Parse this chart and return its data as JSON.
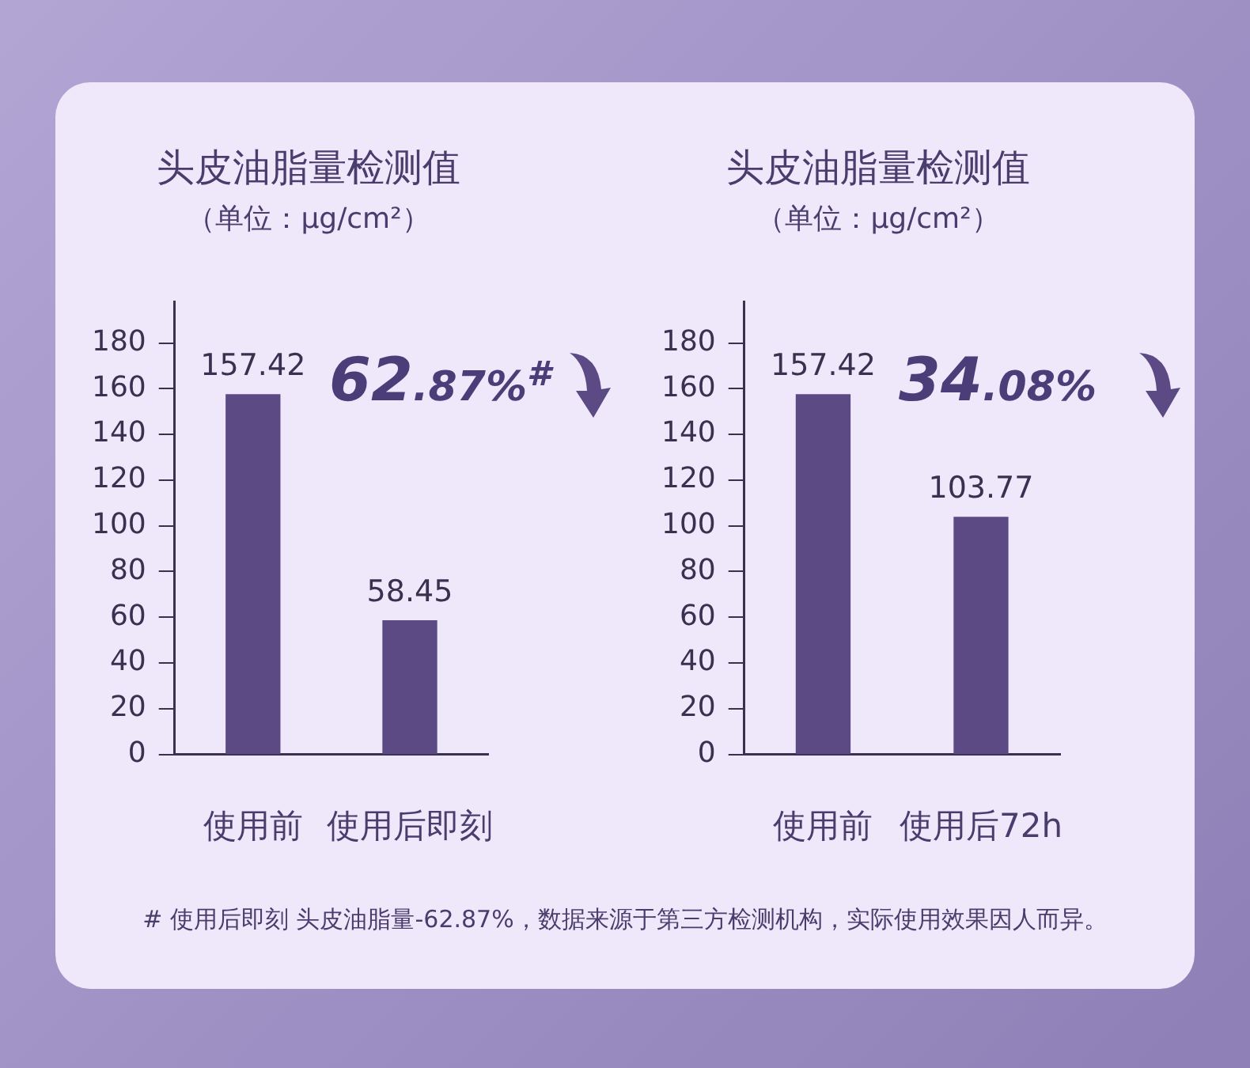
{
  "chart_data": [
    {
      "type": "bar",
      "title": "头皮油脂量检测值",
      "subtitle": "（单位：μg/cm²）",
      "categories": [
        "使用前",
        "使用后即刻"
      ],
      "values": [
        157.42,
        58.45
      ],
      "color": "#5c4a85",
      "ylim": [
        0,
        198
      ],
      "yticks": [
        0,
        20,
        40,
        60,
        80,
        100,
        120,
        140,
        160,
        180
      ],
      "data_labels": true,
      "annotations": [
        "62.87%$^{#}$"
      ]
    },
    {
      "type": "bar",
      "title": "头皮油脂量检测值",
      "subtitle": "（单位：μg/cm²）",
      "categories": [
        "使用前",
        "使用后72h"
      ],
      "values": [
        157.42,
        103.77
      ],
      "color": "#5c4a85",
      "ylim": [
        0,
        198
      ],
      "yticks": [
        0,
        20,
        40,
        60,
        80,
        100,
        120,
        140,
        160,
        180
      ],
      "data_labels": true,
      "annotations": [
        "34.08%",
        "# 使用后即刻 头皮油脂量-62.87%，数据来源于第三方检测机构，实际使用效果因人而异。"
      ]
    }
  ]
}
